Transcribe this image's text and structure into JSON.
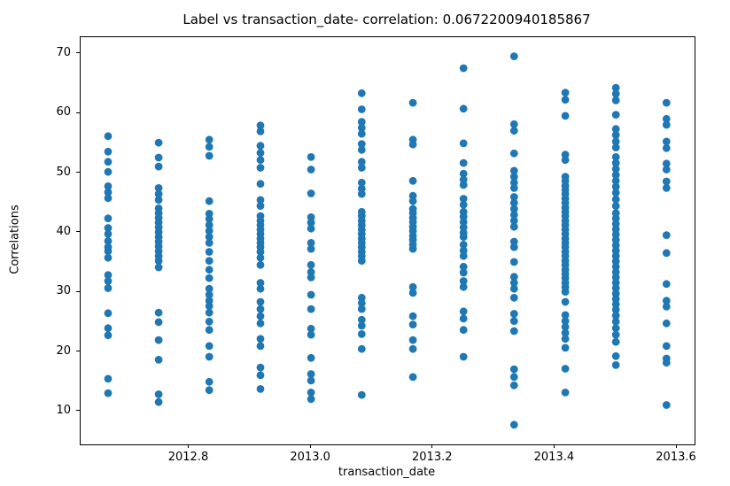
{
  "figure": {
    "background": "#ffffff",
    "spine_color": "#000000"
  },
  "chart_data": {
    "type": "scatter",
    "title": "Label vs transaction_date- correlation: 0.0672200940185867",
    "xlabel": "transaction_date",
    "ylabel": "Correlations",
    "grid": false,
    "legend_position": "none",
    "xlim": [
      2012.622,
      2013.629
    ],
    "ylim": [
      4.5,
      72.8
    ],
    "xticks": {
      "values": [
        2012.8,
        2013.0,
        2013.2,
        2013.4,
        2013.6
      ],
      "labels": [
        "2012.8",
        "2013.0",
        "2013.2",
        "2013.4",
        "2013.6"
      ]
    },
    "yticks": {
      "values": [
        10,
        20,
        30,
        40,
        50,
        60,
        70
      ],
      "labels": [
        "10",
        "20",
        "30",
        "40",
        "50",
        "60",
        "70"
      ]
    },
    "marker": {
      "color": "#1f77b4",
      "radius_px": 4.4
    },
    "series": [
      {
        "name": "Label",
        "clusters": [
          {
            "x": 2012.667,
            "ys": [
              56.2,
              53.6,
              51.9,
              50.2,
              47.8,
              46.8,
              45.8,
              42.4,
              40.8,
              39.8,
              38.6,
              37.6,
              36.9,
              35.8,
              32.9,
              31.9,
              30.7,
              26.5,
              24.0,
              22.8,
              15.5,
              13.1
            ]
          },
          {
            "x": 2012.75,
            "ys": [
              55.1,
              52.6,
              51.1,
              47.5,
              46.5,
              45.5,
              44.1,
              43.3,
              42.5,
              41.7,
              40.9,
              40.1,
              39.3,
              38.5,
              37.7,
              36.9,
              36.1,
              35.3,
              34.2,
              26.6,
              25.0,
              22.0,
              18.7,
              12.9,
              11.6
            ]
          },
          {
            "x": 2012.833,
            "ys": [
              55.6,
              54.4,
              52.9,
              45.3,
              43.2,
              42.3,
              41.3,
              40.3,
              39.3,
              38.3,
              36.8,
              35.3,
              33.8,
              32.4,
              30.6,
              29.6,
              28.6,
              27.7,
              26.6,
              25.1,
              23.7,
              21.0,
              19.2,
              15.0,
              13.6
            ]
          },
          {
            "x": 2012.917,
            "ys": [
              58.0,
              57.0,
              54.6,
              53.4,
              52.2,
              50.9,
              48.2,
              45.5,
              44.5,
              42.8,
              42.0,
              41.3,
              40.5,
              39.8,
              39.0,
              38.3,
              37.6,
              36.8,
              35.8,
              34.6,
              31.6,
              30.6,
              28.4,
              27.2,
              26.0,
              24.8,
              22.2,
              21.0,
              17.4,
              16.1,
              13.8
            ]
          },
          {
            "x": 2013.0,
            "ys": [
              52.7,
              50.6,
              46.6,
              42.6,
              41.7,
              40.7,
              38.3,
              37.3,
              34.6,
              33.4,
              32.5,
              29.6,
              27.2,
              23.9,
              22.9,
              19.0,
              16.3,
              15.2,
              13.2,
              12.1
            ]
          },
          {
            "x": 2013.083,
            "ys": [
              63.4,
              60.7,
              58.6,
              57.6,
              56.6,
              54.9,
              53.9,
              51.9,
              50.9,
              48.4,
              47.4,
              46.5,
              43.5,
              42.8,
              42.0,
              41.3,
              40.5,
              39.8,
              39.0,
              38.3,
              37.6,
              36.8,
              36.1,
              35.3,
              29.1,
              28.2,
              27.2,
              25.4,
              24.4,
              23.0,
              20.5,
              12.8
            ]
          },
          {
            "x": 2013.167,
            "ys": [
              61.8,
              55.6,
              54.8,
              48.7,
              46.2,
              45.3,
              44.0,
              43.3,
              42.5,
              41.8,
              41.0,
              40.3,
              39.5,
              38.8,
              38.0,
              37.3,
              30.9,
              29.9,
              26.0,
              24.6,
              22.0,
              20.5,
              15.8
            ]
          },
          {
            "x": 2013.25,
            "ys": [
              67.6,
              60.8,
              55.0,
              51.7,
              49.9,
              48.9,
              48.0,
              45.7,
              44.7,
              43.5,
              42.7,
              41.8,
              40.9,
              40.0,
              39.3,
              38.0,
              37.0,
              36.1,
              34.3,
              33.3,
              31.9,
              30.9,
              26.8,
              25.6,
              23.7,
              19.2
            ]
          },
          {
            "x": 2013.333,
            "ys": [
              69.6,
              58.2,
              57.1,
              53.3,
              50.4,
              49.4,
              48.4,
              47.5,
              46.0,
              45.0,
              44.0,
              43.0,
              42.0,
              41.0,
              38.5,
              37.6,
              35.1,
              32.6,
              31.6,
              30.6,
              29.1,
              26.4,
              25.2,
              23.5,
              17.1,
              15.8,
              14.4,
              7.8
            ]
          },
          {
            "x": 2013.417,
            "ys": [
              63.5,
              62.3,
              59.6,
              53.1,
              52.2,
              49.4,
              48.7,
              47.9,
              47.2,
              46.5,
              45.7,
              45.0,
              44.2,
              43.5,
              42.8,
              42.0,
              41.3,
              40.5,
              39.8,
              39.0,
              38.3,
              37.6,
              36.8,
              36.1,
              35.3,
              34.6,
              33.8,
              33.1,
              32.4,
              31.6,
              30.9,
              30.1,
              28.4,
              26.2,
              25.2,
              24.2,
              23.2,
              22.2,
              20.7,
              17.2,
              13.2
            ]
          },
          {
            "x": 2013.5,
            "ys": [
              64.3,
              63.3,
              62.2,
              59.8,
              57.4,
              56.4,
              55.3,
              54.3,
              52.7,
              51.7,
              50.7,
              49.7,
              48.7,
              47.7,
              46.7,
              45.6,
              44.5,
              43.3,
              42.4,
              41.5,
              40.6,
              39.7,
              38.8,
              37.9,
              37.0,
              36.1,
              35.2,
              34.3,
              33.4,
              32.5,
              31.6,
              30.7,
              29.8,
              28.9,
              28.0,
              27.1,
              26.1,
              25.1,
              24.0,
              22.9,
              21.7,
              19.3,
              17.8
            ]
          },
          {
            "x": 2013.583,
            "ys": [
              61.8,
              59.1,
              58.1,
              55.3,
              54.2,
              51.6,
              50.6,
              48.6,
              47.5,
              39.6,
              36.6,
              31.4,
              28.6,
              27.6,
              24.8,
              21.0,
              18.9,
              18.2,
              11.1
            ]
          }
        ]
      }
    ]
  }
}
